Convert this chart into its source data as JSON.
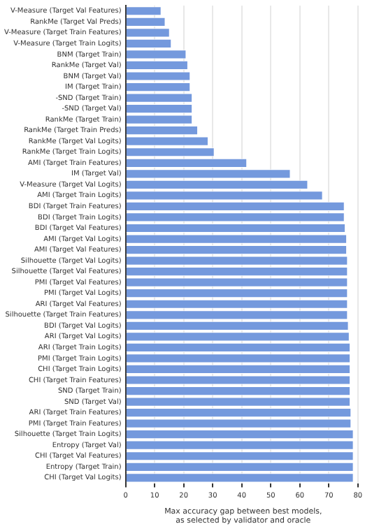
{
  "chart_data": {
    "type": "bar",
    "orientation": "horizontal",
    "xlabel": "Max accuracy gap between best models,\nas selected by validator and oracle",
    "color": "#7499dd",
    "grid": "x",
    "xlim": [
      0,
      81
    ],
    "xticks": [
      0,
      10,
      20,
      30,
      40,
      50,
      60,
      70,
      80
    ],
    "categories": [
      "V-Measure (Target Val Features)",
      "RankMe (Target Val Preds)",
      "V-Measure (Target Train Features)",
      "V-Measure (Target Train Logits)",
      "BNM (Target Train)",
      "RankMe (Target Val)",
      "BNM (Target Val)",
      "IM (Target Train)",
      "-SND (Target Train)",
      "-SND (Target Val)",
      "RankMe (Target Train)",
      "RankMe (Target Train Preds)",
      "RankMe (Target Val Logits)",
      "RankMe (Target Train Logits)",
      "AMI (Target Train Features)",
      "IM (Target Val)",
      "V-Measure (Target Val Logits)",
      "AMI (Target Train Logits)",
      "BDI (Target Train Features)",
      "BDI (Target Train Logits)",
      "BDI (Target Val Features)",
      "AMI (Target Val Logits)",
      "AMI (Target Val Features)",
      "Silhouette (Target Val Logits)",
      "Silhouette (Target Val Features)",
      "PMI (Target Val Features)",
      "PMI (Target Val Logits)",
      "ARI (Target Val Features)",
      "Silhouette (Target Train Features)",
      "BDI (Target Val Logits)",
      "ARI (Target Val Logits)",
      "ARI (Target Train Logits)",
      "PMI (Target Train Logits)",
      "CHI (Target Train Logits)",
      "CHI (Target Train Features)",
      "SND (Target Train)",
      "SND (Target Val)",
      "ARI (Target Train Features)",
      "PMI (Target Train Features)",
      "Silhouette (Target Train Logits)",
      "Entropy (Target Val)",
      "CHI (Target Val Features)",
      "Entropy (Target Train)",
      "CHI (Target Val Logits)"
    ],
    "values": [
      12.3,
      13.7,
      15.2,
      15.8,
      20.9,
      21.5,
      22.3,
      22.3,
      23,
      23,
      23,
      24.9,
      28.5,
      30.6,
      41.8,
      56.8,
      62.8,
      67.9,
      75.4,
      75.4,
      75.7,
      76.2,
      76.2,
      76.5,
      76.5,
      76.5,
      76.5,
      76.5,
      76.5,
      76.8,
      77.1,
      77.4,
      77.4,
      77.4,
      77.4,
      77.4,
      77.4,
      77.7,
      77.7,
      78.5,
      78.5,
      78.5,
      78.5,
      78.5
    ]
  }
}
